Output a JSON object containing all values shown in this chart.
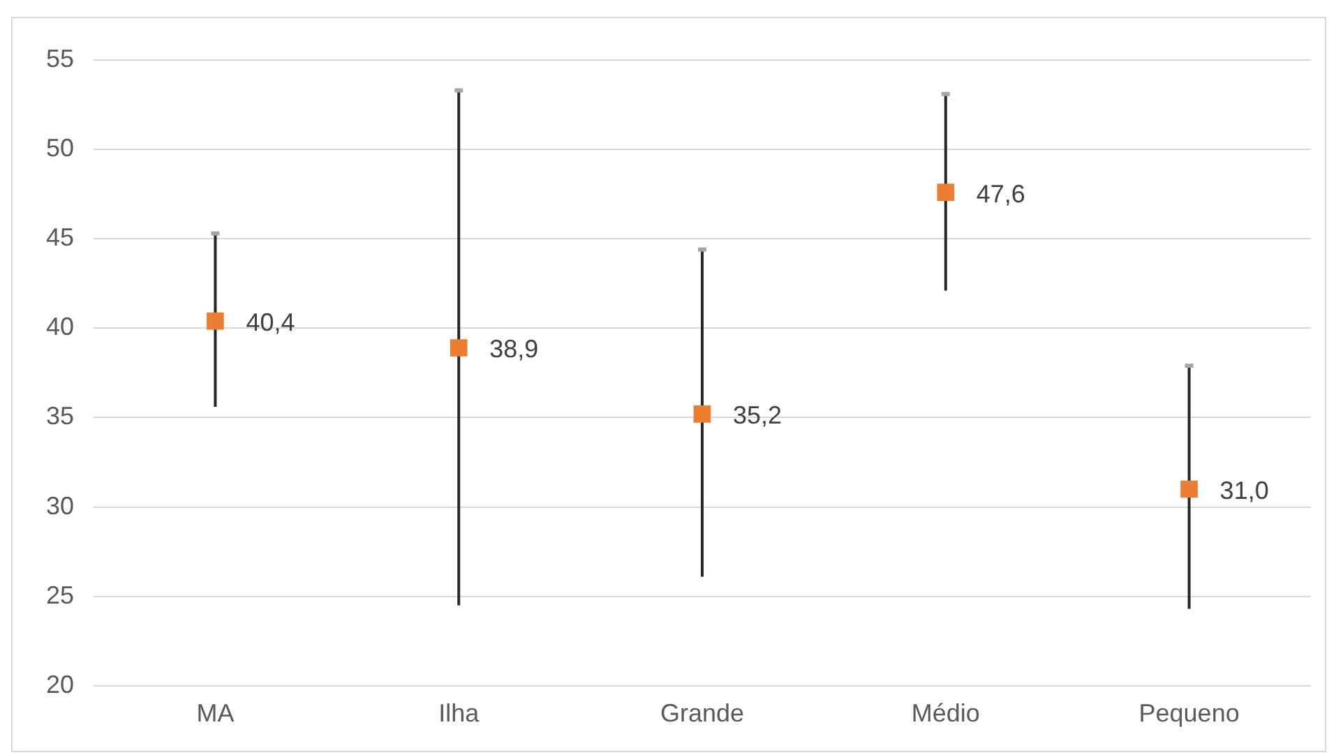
{
  "chart_data": {
    "type": "scatter",
    "categories": [
      "MA",
      "Ilha",
      "Grande",
      "Médio",
      "Pequeno"
    ],
    "series": [
      {
        "color": "#ed7d31",
        "values": [
          40.4,
          38.9,
          35.2,
          47.6,
          31.0
        ],
        "value_labels": [
          "40,4",
          "38,9",
          "35,2",
          "47,6",
          "31,0"
        ],
        "errors": [
          [
            35.6,
            45.3
          ],
          [
            24.5,
            53.3
          ],
          [
            26.1,
            44.4
          ],
          [
            42.1,
            53.1
          ],
          [
            24.3,
            37.9
          ]
        ]
      }
    ],
    "ylim": [
      20,
      55
    ],
    "yticks": [
      20,
      25,
      30,
      35,
      40,
      45,
      50,
      55
    ],
    "grid": "y",
    "legend": false,
    "marker": "square"
  }
}
